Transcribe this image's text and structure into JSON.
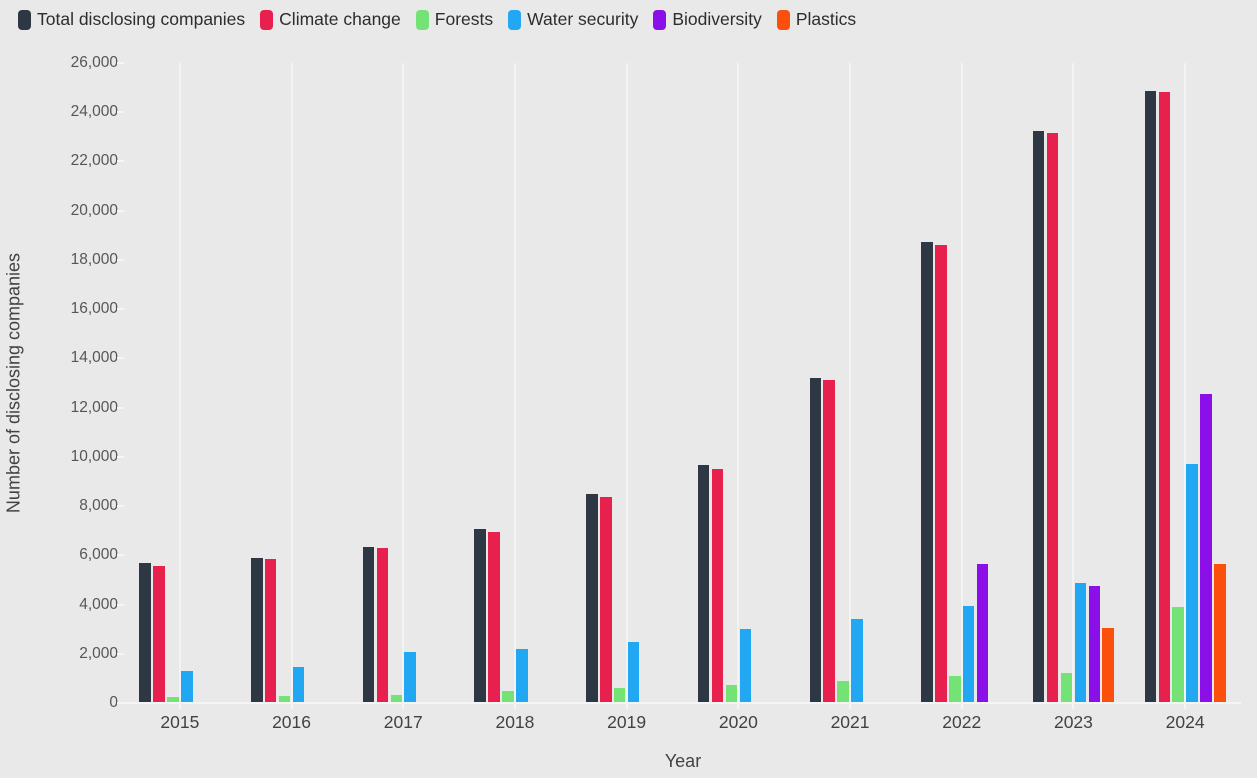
{
  "axes": {
    "ylabel": "Number of disclosing companies",
    "xlabel": "Year"
  },
  "colors": {
    "background": "#e8e9e8",
    "gridline": "#f2f3f2",
    "axis_line": "#f4f5f4",
    "tick_text": "#565656",
    "label_text": "#424242",
    "legend_text": "#2d2d2d"
  },
  "chart_data": {
    "type": "bar",
    "title": "",
    "xlabel": "Year",
    "ylabel": "Number of disclosing companies",
    "ylim": [
      0,
      26000
    ],
    "ytick_step": 2000,
    "grid": "vertical-only",
    "legend_position": "top-left",
    "categories": [
      "2015",
      "2016",
      "2017",
      "2018",
      "2019",
      "2020",
      "2021",
      "2022",
      "2023",
      "2024"
    ],
    "series": [
      {
        "name": "Total disclosing companies",
        "color": "#2e3744",
        "values": [
          5690,
          5890,
          6340,
          7060,
          8480,
          9660,
          13200,
          18730,
          23240,
          24850
        ]
      },
      {
        "name": "Climate change",
        "color": "#e8204e",
        "values": [
          5560,
          5850,
          6290,
          6950,
          8370,
          9500,
          13120,
          18600,
          23150,
          24820
        ]
      },
      {
        "name": "Forests",
        "color": "#74e274",
        "values": [
          250,
          290,
          330,
          500,
          620,
          730,
          890,
          1100,
          1220,
          3900
        ]
      },
      {
        "name": "Water security",
        "color": "#22a7f2",
        "values": [
          1300,
          1480,
          2060,
          2180,
          2470,
          3000,
          3400,
          3930,
          4870,
          9720
        ]
      },
      {
        "name": "Biodiversity",
        "color": "#8a0fe8",
        "values": [
          null,
          null,
          null,
          null,
          null,
          null,
          null,
          5650,
          4750,
          12560
        ]
      },
      {
        "name": "Plastics",
        "color": "#fb4f0c",
        "values": [
          null,
          null,
          null,
          null,
          null,
          null,
          null,
          null,
          3040,
          5650
        ]
      }
    ]
  }
}
